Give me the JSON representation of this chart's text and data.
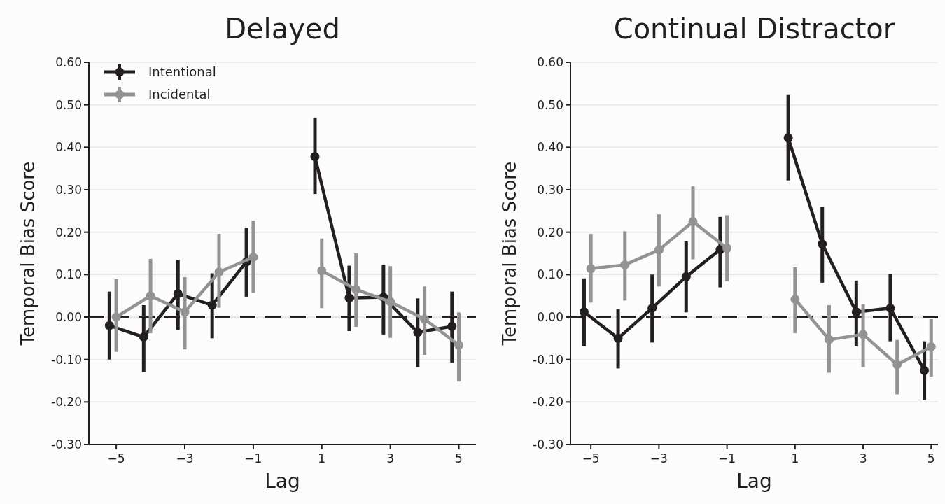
{
  "chart_data": [
    {
      "type": "line",
      "title": "Delayed",
      "xlabel": "Lag",
      "ylabel": "Temporal Bias Score",
      "xlim": [
        -5.8,
        5.5
      ],
      "ylim": [
        -0.3,
        0.6
      ],
      "xticks": [
        {
          "value": -5,
          "label": "−5"
        },
        {
          "value": -3,
          "label": "−3"
        },
        {
          "value": -1,
          "label": "−1"
        },
        1,
        3,
        5
      ],
      "yticks": [
        {
          "value": -0.3,
          "label": "-0.30"
        },
        {
          "value": -0.2,
          "label": "-0.20"
        },
        {
          "value": -0.1,
          "label": "-0.10"
        },
        {
          "value": 0,
          "label": "0.00"
        },
        {
          "value": 0.1,
          "label": "0.10"
        },
        {
          "value": 0.2,
          "label": "0.20"
        },
        {
          "value": 0.3,
          "label": "0.30"
        },
        {
          "value": 0.4,
          "label": "0.40"
        },
        {
          "value": 0.5,
          "label": "0.50"
        },
        {
          "value": 0.6,
          "label": "0.60"
        }
      ],
      "grid": "y",
      "legend": "top left",
      "marker": "circle",
      "line_style": "solid",
      "ref_lines": [
        {
          "axis": "y",
          "value": 0,
          "color": "#231f20",
          "line_style": "dashed"
        }
      ],
      "series": [
        {
          "name": "Intentional",
          "color": "#231f20",
          "x": [
            -5.2,
            -4.2,
            -3.2,
            -2.2,
            -1.2,
            -0.2,
            0.8,
            1.8,
            2.8,
            3.8,
            4.8
          ],
          "values": [
            -0.02,
            -0.047,
            0.055,
            0.028,
            0.13,
            null,
            0.378,
            0.045,
            0.047,
            -0.036,
            -0.022
          ],
          "errors": [
            [
              -0.1,
              0.06
            ],
            [
              -0.129,
              0.028
            ],
            [
              -0.03,
              0.135
            ],
            [
              -0.05,
              0.103
            ],
            [
              0.048,
              0.211
            ],
            null,
            [
              0.29,
              0.47
            ],
            [
              -0.033,
              0.121
            ],
            [
              -0.041,
              0.122
            ],
            [
              -0.118,
              0.044
            ],
            [
              -0.107,
              0.06
            ]
          ]
        },
        {
          "name": "Incidental",
          "color": "#939393",
          "x": [
            -5,
            -4,
            -3,
            -2,
            -1,
            0,
            1,
            2,
            3,
            4,
            5
          ],
          "values": [
            0.0,
            0.05,
            0.012,
            0.106,
            0.141,
            null,
            0.109,
            0.065,
            0.036,
            -0.005,
            -0.066
          ],
          "errors": [
            [
              -0.082,
              0.089
            ],
            [
              -0.038,
              0.137
            ],
            [
              -0.076,
              0.094
            ],
            [
              0.022,
              0.196
            ],
            [
              0.057,
              0.227
            ],
            null,
            [
              0.021,
              0.185
            ],
            [
              -0.023,
              0.15
            ],
            [
              -0.049,
              0.12
            ],
            [
              -0.089,
              0.072
            ],
            [
              -0.152,
              0.011
            ]
          ]
        }
      ]
    },
    {
      "type": "line",
      "title": "Continual Distractor",
      "xlabel": "Lag",
      "ylabel": "Temporal Bias Score",
      "xlim": [
        -5.6,
        5.2
      ],
      "ylim": [
        -0.3,
        0.6
      ],
      "xticks": [
        {
          "value": -5,
          "label": "−5"
        },
        {
          "value": -3,
          "label": "−3"
        },
        {
          "value": -1,
          "label": "−1"
        },
        1,
        3,
        5
      ],
      "yticks": [
        {
          "value": -0.3,
          "label": "-0.30"
        },
        {
          "value": -0.2,
          "label": "-0.20"
        },
        {
          "value": -0.1,
          "label": "-0.10"
        },
        {
          "value": 0,
          "label": "0.00"
        },
        {
          "value": 0.1,
          "label": "0.10"
        },
        {
          "value": 0.2,
          "label": "0.20"
        },
        {
          "value": 0.3,
          "label": "0.30"
        },
        {
          "value": 0.4,
          "label": "0.40"
        },
        {
          "value": 0.5,
          "label": "0.50"
        },
        {
          "value": 0.6,
          "label": "0.60"
        }
      ],
      "grid": "y",
      "legend": false,
      "marker": "circle",
      "line_style": "solid",
      "ref_lines": [
        {
          "axis": "y",
          "value": 0,
          "color": "#231f20",
          "line_style": "dashed"
        }
      ],
      "series": [
        {
          "color": "#231f20",
          "x": [
            -5.2,
            -4.2,
            -3.2,
            -2.2,
            -1.2,
            -0.2,
            0.8,
            1.8,
            2.8,
            3.8,
            4.8
          ],
          "values": [
            0.012,
            -0.05,
            0.021,
            0.095,
            0.159,
            null,
            0.422,
            0.172,
            0.012,
            0.021,
            -0.126
          ],
          "errors": [
            [
              -0.069,
              0.091
            ],
            [
              -0.121,
              0.018
            ],
            [
              -0.06,
              0.1
            ],
            [
              0.011,
              0.178
            ],
            [
              0.07,
              0.236
            ],
            null,
            [
              0.322,
              0.523
            ],
            [
              0.081,
              0.259
            ],
            [
              -0.069,
              0.086
            ],
            [
              -0.057,
              0.101
            ],
            [
              -0.196,
              -0.057
            ]
          ]
        },
        {
          "color": "#939393",
          "x": [
            -5,
            -4,
            -3,
            -2,
            -1,
            0,
            1,
            2,
            3,
            4,
            5
          ],
          "values": [
            0.114,
            0.123,
            0.158,
            0.225,
            0.162,
            null,
            0.042,
            -0.053,
            -0.041,
            -0.112,
            -0.07
          ],
          "errors": [
            [
              0.034,
              0.196
            ],
            [
              0.039,
              0.202
            ],
            [
              0.072,
              0.242
            ],
            [
              0.136,
              0.308
            ],
            [
              0.084,
              0.24
            ],
            null,
            [
              -0.038,
              0.117
            ],
            [
              -0.131,
              0.028
            ],
            [
              -0.118,
              0.03
            ],
            [
              -0.182,
              -0.054
            ],
            [
              -0.14,
              -0.005
            ]
          ]
        }
      ]
    }
  ]
}
